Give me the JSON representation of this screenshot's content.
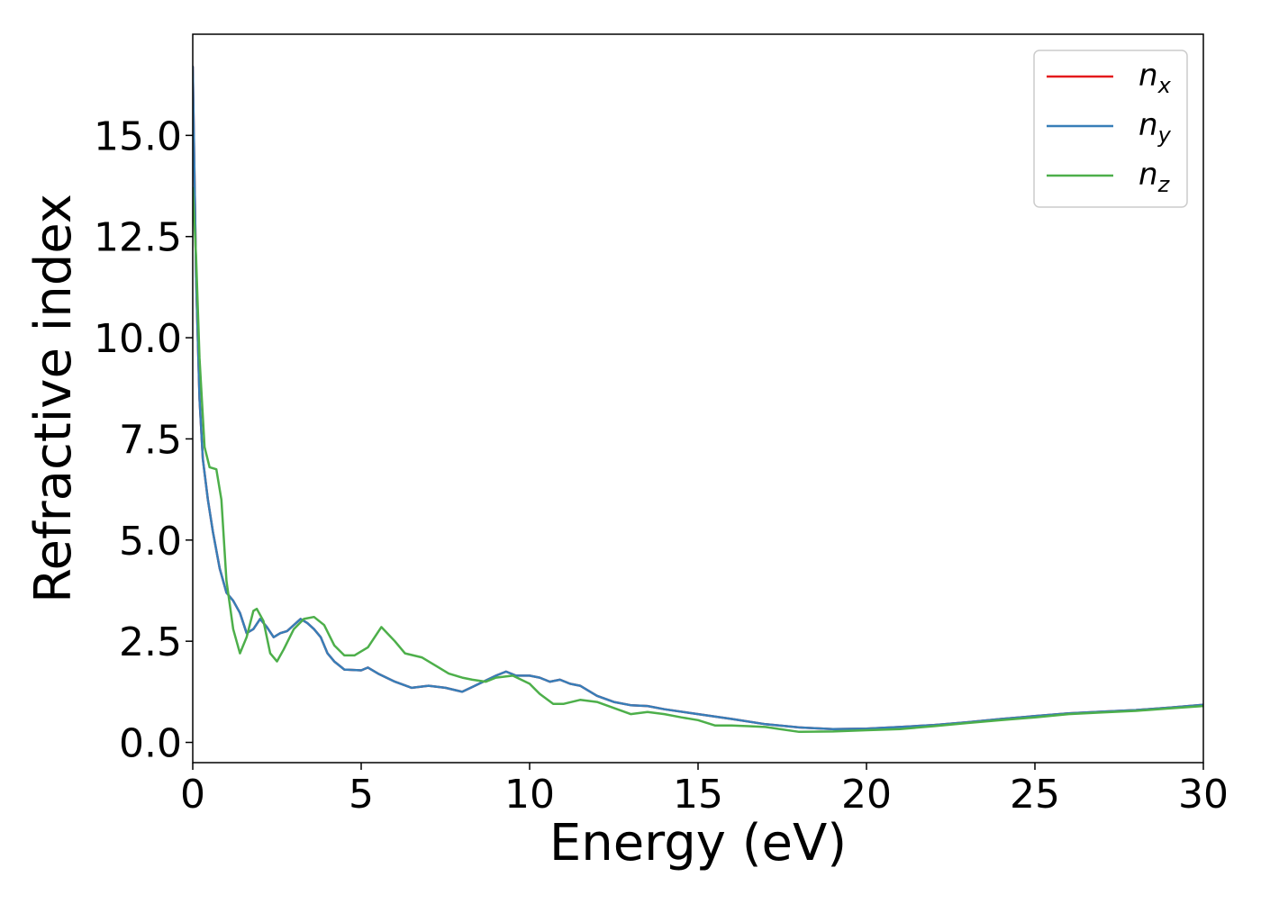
{
  "chart_data": {
    "type": "line",
    "title": "",
    "xlabel": "Energy (eV)",
    "ylabel": "Refractive index",
    "xlim": [
      0,
      30
    ],
    "ylim": [
      -0.5,
      17.5
    ],
    "xticks": [
      0,
      5,
      10,
      15,
      20,
      25,
      30
    ],
    "xtick_labels": [
      "0",
      "5",
      "10",
      "15",
      "20",
      "25",
      "30"
    ],
    "yticks": [
      0.0,
      2.5,
      5.0,
      7.5,
      10.0,
      12.5,
      15.0
    ],
    "ytick_labels": [
      "0.0",
      "2.5",
      "5.0",
      "7.5",
      "10.0",
      "12.5",
      "15.0"
    ],
    "grid": false,
    "legend_position": "top-right",
    "series": [
      {
        "name": "n_x",
        "legend_base": "n",
        "legend_sub": "x",
        "color": "#e41a1c",
        "x": [
          0,
          0.1,
          0.2,
          0.3,
          0.45,
          0.6,
          0.8,
          1.0,
          1.2,
          1.4,
          1.6,
          1.8,
          2.0,
          2.2,
          2.4,
          2.6,
          2.8,
          3.0,
          3.2,
          3.4,
          3.6,
          3.8,
          4.0,
          4.2,
          4.5,
          5.0,
          5.2,
          5.5,
          6.0,
          6.5,
          7.0,
          7.5,
          8.0,
          8.5,
          9.0,
          9.3,
          9.6,
          10.0,
          10.3,
          10.6,
          10.9,
          11.2,
          11.5,
          12.0,
          12.5,
          13.0,
          13.5,
          14.0,
          15.0,
          16.0,
          17.0,
          18.0,
          19.0,
          20.0,
          21.0,
          22.0,
          23.0,
          24.0,
          25.0,
          26.0,
          27.0,
          28.0,
          29.0,
          30.0
        ],
        "values": [
          16.7,
          11.5,
          8.5,
          7.0,
          6.0,
          5.2,
          4.3,
          3.7,
          3.5,
          3.2,
          2.7,
          2.8,
          3.05,
          2.85,
          2.6,
          2.7,
          2.75,
          2.9,
          3.05,
          2.95,
          2.8,
          2.6,
          2.2,
          2.0,
          1.8,
          1.78,
          1.85,
          1.7,
          1.5,
          1.35,
          1.4,
          1.35,
          1.25,
          1.45,
          1.65,
          1.75,
          1.65,
          1.65,
          1.6,
          1.5,
          1.55,
          1.45,
          1.4,
          1.15,
          1.0,
          0.92,
          0.9,
          0.82,
          0.7,
          0.58,
          0.45,
          0.37,
          0.33,
          0.34,
          0.38,
          0.43,
          0.5,
          0.58,
          0.65,
          0.72,
          0.76,
          0.8,
          0.86,
          0.93
        ]
      },
      {
        "name": "n_y",
        "legend_base": "n",
        "legend_sub": "y",
        "color": "#377eb8",
        "x": [
          0,
          0.1,
          0.2,
          0.3,
          0.45,
          0.6,
          0.8,
          1.0,
          1.2,
          1.4,
          1.6,
          1.8,
          2.0,
          2.2,
          2.4,
          2.6,
          2.8,
          3.0,
          3.2,
          3.4,
          3.6,
          3.8,
          4.0,
          4.2,
          4.5,
          5.0,
          5.2,
          5.5,
          6.0,
          6.5,
          7.0,
          7.5,
          8.0,
          8.5,
          9.0,
          9.3,
          9.6,
          10.0,
          10.3,
          10.6,
          10.9,
          11.2,
          11.5,
          12.0,
          12.5,
          13.0,
          13.5,
          14.0,
          15.0,
          16.0,
          17.0,
          18.0,
          19.0,
          20.0,
          21.0,
          22.0,
          23.0,
          24.0,
          25.0,
          26.0,
          27.0,
          28.0,
          29.0,
          30.0
        ],
        "values": [
          16.7,
          11.5,
          8.5,
          7.0,
          6.0,
          5.2,
          4.3,
          3.7,
          3.5,
          3.2,
          2.7,
          2.8,
          3.05,
          2.85,
          2.6,
          2.7,
          2.75,
          2.9,
          3.05,
          2.95,
          2.8,
          2.6,
          2.2,
          2.0,
          1.8,
          1.78,
          1.85,
          1.7,
          1.5,
          1.35,
          1.4,
          1.35,
          1.25,
          1.45,
          1.65,
          1.75,
          1.65,
          1.65,
          1.6,
          1.5,
          1.55,
          1.45,
          1.4,
          1.15,
          1.0,
          0.92,
          0.9,
          0.82,
          0.7,
          0.58,
          0.45,
          0.37,
          0.33,
          0.34,
          0.38,
          0.43,
          0.5,
          0.58,
          0.65,
          0.72,
          0.76,
          0.8,
          0.86,
          0.93
        ]
      },
      {
        "name": "n_z",
        "legend_base": "n",
        "legend_sub": "z",
        "color": "#4daf4a",
        "x": [
          0,
          0.1,
          0.2,
          0.35,
          0.5,
          0.7,
          0.85,
          1.0,
          1.2,
          1.4,
          1.6,
          1.8,
          1.9,
          2.1,
          2.3,
          2.5,
          2.7,
          3.0,
          3.3,
          3.6,
          3.9,
          4.2,
          4.5,
          4.8,
          5.2,
          5.6,
          6.0,
          6.3,
          6.8,
          7.2,
          7.6,
          8.0,
          8.3,
          8.7,
          9.0,
          9.5,
          10.0,
          10.3,
          10.7,
          11.0,
          11.5,
          12.0,
          12.5,
          13.0,
          13.5,
          14.0,
          14.5,
          15.0,
          15.5,
          16.0,
          16.5,
          17.0,
          17.5,
          18.0,
          19.0,
          20.0,
          21.0,
          22.0,
          23.0,
          24.0,
          25.0,
          26.0,
          27.0,
          28.0,
          29.0,
          30.0
        ],
        "values": [
          13.7,
          12.0,
          9.5,
          7.3,
          6.8,
          6.75,
          6.0,
          4.0,
          2.8,
          2.2,
          2.6,
          3.25,
          3.3,
          3.0,
          2.2,
          2.0,
          2.3,
          2.8,
          3.05,
          3.1,
          2.9,
          2.4,
          2.15,
          2.15,
          2.35,
          2.85,
          2.5,
          2.2,
          2.1,
          1.9,
          1.7,
          1.6,
          1.55,
          1.5,
          1.6,
          1.65,
          1.45,
          1.2,
          0.95,
          0.95,
          1.05,
          1.0,
          0.85,
          0.7,
          0.75,
          0.7,
          0.62,
          0.55,
          0.42,
          0.42,
          0.4,
          0.38,
          0.32,
          0.26,
          0.27,
          0.3,
          0.33,
          0.4,
          0.48,
          0.55,
          0.62,
          0.7,
          0.74,
          0.78,
          0.84,
          0.9
        ]
      }
    ]
  }
}
